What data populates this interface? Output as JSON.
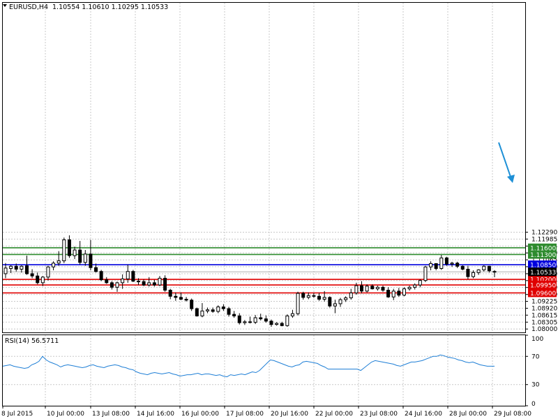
{
  "header": {
    "symbol": "EURUSD,H4",
    "ohlc": "1.10554 1.10610 1.10295 1.10533"
  },
  "rsi_header": {
    "label": "RSI(14) 56.5711"
  },
  "colors": {
    "bull_body": "#ffffff",
    "bear_body": "#000000",
    "support": "#e00000",
    "resistance_green": "#2e8b2e",
    "resistance_blue": "#0000dd",
    "rsi_line": "#1f7fd6",
    "arrow": "#1e90d6",
    "grid": "#c8c8c8"
  },
  "chart_data": [
    {
      "type": "candlestick",
      "title": "EURUSD,H4",
      "ylim": [
        1.0785,
        1.2245
      ],
      "y_ticks": [
        "1.12290",
        "1.11985",
        "1.11675",
        "1.11370",
        "1.11065",
        "1.10760",
        "1.10450",
        "1.10145",
        "1.09840",
        "1.09530",
        "1.09225",
        "1.08920",
        "1.08615",
        "1.08305",
        "1.08000"
      ],
      "x_ticks": [
        "8 Jul 2015",
        "10 Jul 00:00",
        "13 Jul 08:00",
        "14 Jul 16:00",
        "16 Jul 00:00",
        "17 Jul 08:00",
        "20 Jul 16:00",
        "22 Jul 00:00",
        "23 Jul 08:00",
        "24 Jul 16:00",
        "28 Jul 00:00",
        "29 Jul 08:00"
      ],
      "current_price": "1.10533",
      "grid": true,
      "levels": [
        {
          "label": "1.11600",
          "value": 1.116,
          "color": "#2e8b2e"
        },
        {
          "label": "1.11300",
          "value": 1.113,
          "color": "#2e8b2e"
        },
        {
          "label": "1.10850",
          "value": 1.1085,
          "color": "#0000dd"
        },
        {
          "label": "1.10200",
          "value": 1.102,
          "color": "#e00000"
        },
        {
          "label": "1.09950",
          "value": 1.0995,
          "color": "#e00000"
        },
        {
          "label": "1.09600",
          "value": 1.096,
          "color": "#e00000"
        }
      ],
      "candles": [
        {
          "o": 1.1045,
          "h": 1.1092,
          "l": 1.1025,
          "c": 1.107
        },
        {
          "o": 1.1068,
          "h": 1.1082,
          "l": 1.1048,
          "c": 1.1078
        },
        {
          "o": 1.1078,
          "h": 1.109,
          "l": 1.1055,
          "c": 1.1065
        },
        {
          "o": 1.1065,
          "h": 1.1082,
          "l": 1.105,
          "c": 1.1078
        },
        {
          "o": 1.108,
          "h": 1.1125,
          "l": 1.104,
          "c": 1.1045
        },
        {
          "o": 1.1045,
          "h": 1.1065,
          "l": 1.1025,
          "c": 1.1035
        },
        {
          "o": 1.1035,
          "h": 1.105,
          "l": 1.0998,
          "c": 1.1005
        },
        {
          "o": 1.1005,
          "h": 1.1035,
          "l": 1.099,
          "c": 1.103
        },
        {
          "o": 1.103,
          "h": 1.108,
          "l": 1.1015,
          "c": 1.1075
        },
        {
          "o": 1.1075,
          "h": 1.11,
          "l": 1.106,
          "c": 1.1092
        },
        {
          "o": 1.1092,
          "h": 1.1145,
          "l": 1.108,
          "c": 1.1102
        },
        {
          "o": 1.1102,
          "h": 1.1205,
          "l": 1.1092,
          "c": 1.1195
        },
        {
          "o": 1.1195,
          "h": 1.1215,
          "l": 1.1115,
          "c": 1.1125
        },
        {
          "o": 1.1125,
          "h": 1.1165,
          "l": 1.111,
          "c": 1.115
        },
        {
          "o": 1.115,
          "h": 1.119,
          "l": 1.1085,
          "c": 1.1095
        },
        {
          "o": 1.1095,
          "h": 1.115,
          "l": 1.108,
          "c": 1.1132
        },
        {
          "o": 1.1132,
          "h": 1.1195,
          "l": 1.106,
          "c": 1.1072
        },
        {
          "o": 1.1072,
          "h": 1.109,
          "l": 1.105,
          "c": 1.1055
        },
        {
          "o": 1.1055,
          "h": 1.1062,
          "l": 1.1012,
          "c": 1.1018
        },
        {
          "o": 1.1018,
          "h": 1.103,
          "l": 1.1,
          "c": 1.1005
        },
        {
          "o": 1.1005,
          "h": 1.1012,
          "l": 1.0975,
          "c": 1.0985
        },
        {
          "o": 1.0985,
          "h": 1.101,
          "l": 1.0965,
          "c": 1.1005
        },
        {
          "o": 1.1005,
          "h": 1.1042,
          "l": 1.0978,
          "c": 1.1022
        },
        {
          "o": 1.1022,
          "h": 1.1085,
          "l": 1.1005,
          "c": 1.1055
        },
        {
          "o": 1.1055,
          "h": 1.1062,
          "l": 1.1008,
          "c": 1.1012
        },
        {
          "o": 1.1012,
          "h": 1.1025,
          "l": 1.0995,
          "c": 1.101
        },
        {
          "o": 1.101,
          "h": 1.102,
          "l": 1.099,
          "c": 1.0995
        },
        {
          "o": 1.0995,
          "h": 1.103,
          "l": 1.0988,
          "c": 1.1005
        },
        {
          "o": 1.1005,
          "h": 1.1018,
          "l": 1.0988,
          "c": 1.0995
        },
        {
          "o": 1.0995,
          "h": 1.1035,
          "l": 1.099,
          "c": 1.1025
        },
        {
          "o": 1.1025,
          "h": 1.1038,
          "l": 1.0965,
          "c": 1.0972
        },
        {
          "o": 1.0972,
          "h": 1.0978,
          "l": 1.0932,
          "c": 1.0945
        },
        {
          "o": 1.0945,
          "h": 1.0962,
          "l": 1.0925,
          "c": 1.094
        },
        {
          "o": 1.094,
          "h": 1.0962,
          "l": 1.0928,
          "c": 1.0932
        },
        {
          "o": 1.0932,
          "h": 1.0942,
          "l": 1.0922,
          "c": 1.0928
        },
        {
          "o": 1.0928,
          "h": 1.0935,
          "l": 1.088,
          "c": 1.089
        },
        {
          "o": 1.089,
          "h": 1.0895,
          "l": 1.0855,
          "c": 1.0858
        },
        {
          "o": 1.0858,
          "h": 1.0915,
          "l": 1.0852,
          "c": 1.088
        },
        {
          "o": 1.088,
          "h": 1.0895,
          "l": 1.087,
          "c": 1.0885
        },
        {
          "o": 1.0885,
          "h": 1.0895,
          "l": 1.0872,
          "c": 1.0878
        },
        {
          "o": 1.0878,
          "h": 1.0905,
          "l": 1.087,
          "c": 1.0898
        },
        {
          "o": 1.0898,
          "h": 1.091,
          "l": 1.088,
          "c": 1.089
        },
        {
          "o": 1.089,
          "h": 1.0898,
          "l": 1.0855,
          "c": 1.0865
        },
        {
          "o": 1.0865,
          "h": 1.088,
          "l": 1.085,
          "c": 1.0858
        },
        {
          "o": 1.0858,
          "h": 1.087,
          "l": 1.082,
          "c": 1.0828
        },
        {
          "o": 1.0828,
          "h": 1.084,
          "l": 1.0818,
          "c": 1.0832
        },
        {
          "o": 1.0832,
          "h": 1.0855,
          "l": 1.0825,
          "c": 1.083
        },
        {
          "o": 1.083,
          "h": 1.0862,
          "l": 1.0822,
          "c": 1.085
        },
        {
          "o": 1.085,
          "h": 1.0868,
          "l": 1.0838,
          "c": 1.0845
        },
        {
          "o": 1.0845,
          "h": 1.086,
          "l": 1.0828,
          "c": 1.0835
        },
        {
          "o": 1.0835,
          "h": 1.0842,
          "l": 1.081,
          "c": 1.082
        },
        {
          "o": 1.082,
          "h": 1.083,
          "l": 1.0815,
          "c": 1.0825
        },
        {
          "o": 1.0825,
          "h": 1.0832,
          "l": 1.0812,
          "c": 1.0815
        },
        {
          "o": 1.0815,
          "h": 1.0865,
          "l": 1.081,
          "c": 1.0858
        },
        {
          "o": 1.0858,
          "h": 1.0885,
          "l": 1.085,
          "c": 1.0868
        },
        {
          "o": 1.0868,
          "h": 1.0965,
          "l": 1.086,
          "c": 1.0958
        },
        {
          "o": 1.0958,
          "h": 1.0965,
          "l": 1.093,
          "c": 1.094
        },
        {
          "o": 1.094,
          "h": 1.0962,
          "l": 1.0932,
          "c": 1.0948
        },
        {
          "o": 1.0948,
          "h": 1.096,
          "l": 1.0938,
          "c": 1.0945
        },
        {
          "o": 1.0945,
          "h": 1.096,
          "l": 1.0925,
          "c": 1.0932
        },
        {
          "o": 1.0932,
          "h": 1.0968,
          "l": 1.0922,
          "c": 1.094
        },
        {
          "o": 1.094,
          "h": 1.0945,
          "l": 1.0895,
          "c": 1.0902
        },
        {
          "o": 1.0902,
          "h": 1.093,
          "l": 1.087,
          "c": 1.0912
        },
        {
          "o": 1.0912,
          "h": 1.0938,
          "l": 1.0898,
          "c": 1.093
        },
        {
          "o": 1.093,
          "h": 1.0945,
          "l": 1.092,
          "c": 1.0938
        },
        {
          "o": 1.0938,
          "h": 1.0978,
          "l": 1.093,
          "c": 1.096
        },
        {
          "o": 1.096,
          "h": 1.1005,
          "l": 1.0952,
          "c": 1.0992
        },
        {
          "o": 1.0992,
          "h": 1.1012,
          "l": 1.0958,
          "c": 1.0968
        },
        {
          "o": 1.0968,
          "h": 1.0998,
          "l": 1.0962,
          "c": 1.099
        },
        {
          "o": 1.099,
          "h": 1.0998,
          "l": 1.0975,
          "c": 1.0978
        },
        {
          "o": 1.0978,
          "h": 1.0992,
          "l": 1.097,
          "c": 1.0985
        },
        {
          "o": 1.0985,
          "h": 1.0992,
          "l": 1.0965,
          "c": 1.0972
        },
        {
          "o": 1.0972,
          "h": 1.0985,
          "l": 1.0938,
          "c": 1.0942
        },
        {
          "o": 1.0942,
          "h": 1.0978,
          "l": 1.0928,
          "c": 1.0968
        },
        {
          "o": 1.0968,
          "h": 1.0982,
          "l": 1.0942,
          "c": 1.095
        },
        {
          "o": 1.095,
          "h": 1.0985,
          "l": 1.0945,
          "c": 1.0978
        },
        {
          "o": 1.0978,
          "h": 1.0992,
          "l": 1.097,
          "c": 1.0985
        },
        {
          "o": 1.0985,
          "h": 1.1002,
          "l": 1.0975,
          "c": 1.0995
        },
        {
          "o": 1.0995,
          "h": 1.102,
          "l": 1.0985,
          "c": 1.1015
        },
        {
          "o": 1.1015,
          "h": 1.108,
          "l": 1.1008,
          "c": 1.1075
        },
        {
          "o": 1.1075,
          "h": 1.11,
          "l": 1.106,
          "c": 1.109
        },
        {
          "o": 1.109,
          "h": 1.1085,
          "l": 1.106,
          "c": 1.1068
        },
        {
          "o": 1.1068,
          "h": 1.1128,
          "l": 1.1062,
          "c": 1.1115
        },
        {
          "o": 1.1115,
          "h": 1.112,
          "l": 1.108,
          "c": 1.1088
        },
        {
          "o": 1.1088,
          "h": 1.1098,
          "l": 1.1075,
          "c": 1.1092
        },
        {
          "o": 1.1092,
          "h": 1.1098,
          "l": 1.107,
          "c": 1.1078
        },
        {
          "o": 1.1078,
          "h": 1.1082,
          "l": 1.106,
          "c": 1.1065
        },
        {
          "o": 1.1065,
          "h": 1.108,
          "l": 1.102,
          "c": 1.1032
        },
        {
          "o": 1.1032,
          "h": 1.106,
          "l": 1.1025,
          "c": 1.105
        },
        {
          "o": 1.105,
          "h": 1.1065,
          "l": 1.104,
          "c": 1.1062
        },
        {
          "o": 1.1062,
          "h": 1.1082,
          "l": 1.1055,
          "c": 1.1078
        },
        {
          "o": 1.1078,
          "h": 1.108,
          "l": 1.105,
          "c": 1.1058
        },
        {
          "o": 1.1055,
          "h": 1.1061,
          "l": 1.10295,
          "c": 1.10533
        }
      ]
    },
    {
      "type": "line",
      "title": "RSI(14) 56.5711",
      "ylim": [
        0,
        100
      ],
      "y_ticks": [
        "100",
        "70",
        "30",
        "0"
      ],
      "values": [
        56,
        57,
        58,
        56,
        55,
        54,
        53,
        54,
        58,
        60,
        63,
        70,
        65,
        62,
        60,
        58,
        55,
        57,
        58,
        57,
        56,
        55,
        54,
        55,
        57,
        58,
        56,
        55,
        54,
        56,
        57,
        58,
        57,
        55,
        54,
        52,
        51,
        48,
        46,
        45,
        44,
        46,
        47,
        46,
        45,
        46,
        47,
        45,
        44,
        42,
        43,
        44,
        44,
        45,
        46,
        44,
        45,
        45,
        44,
        43,
        44,
        42,
        41,
        44,
        43,
        44,
        45,
        44,
        46,
        48,
        47,
        50,
        55,
        60,
        65,
        64,
        62,
        60,
        58,
        56,
        55,
        57,
        58,
        62,
        63,
        62,
        61,
        60,
        57,
        55,
        52,
        52,
        52,
        52,
        52,
        52,
        52,
        52,
        52,
        50,
        54,
        58,
        62,
        64,
        63,
        62,
        61,
        60,
        59,
        57,
        56,
        58,
        60,
        62,
        62,
        63,
        64,
        66,
        68,
        70,
        70,
        72,
        71,
        69,
        68,
        67,
        65,
        64,
        62,
        61,
        62,
        60,
        58,
        57,
        56,
        56,
        56
      ]
    }
  ]
}
